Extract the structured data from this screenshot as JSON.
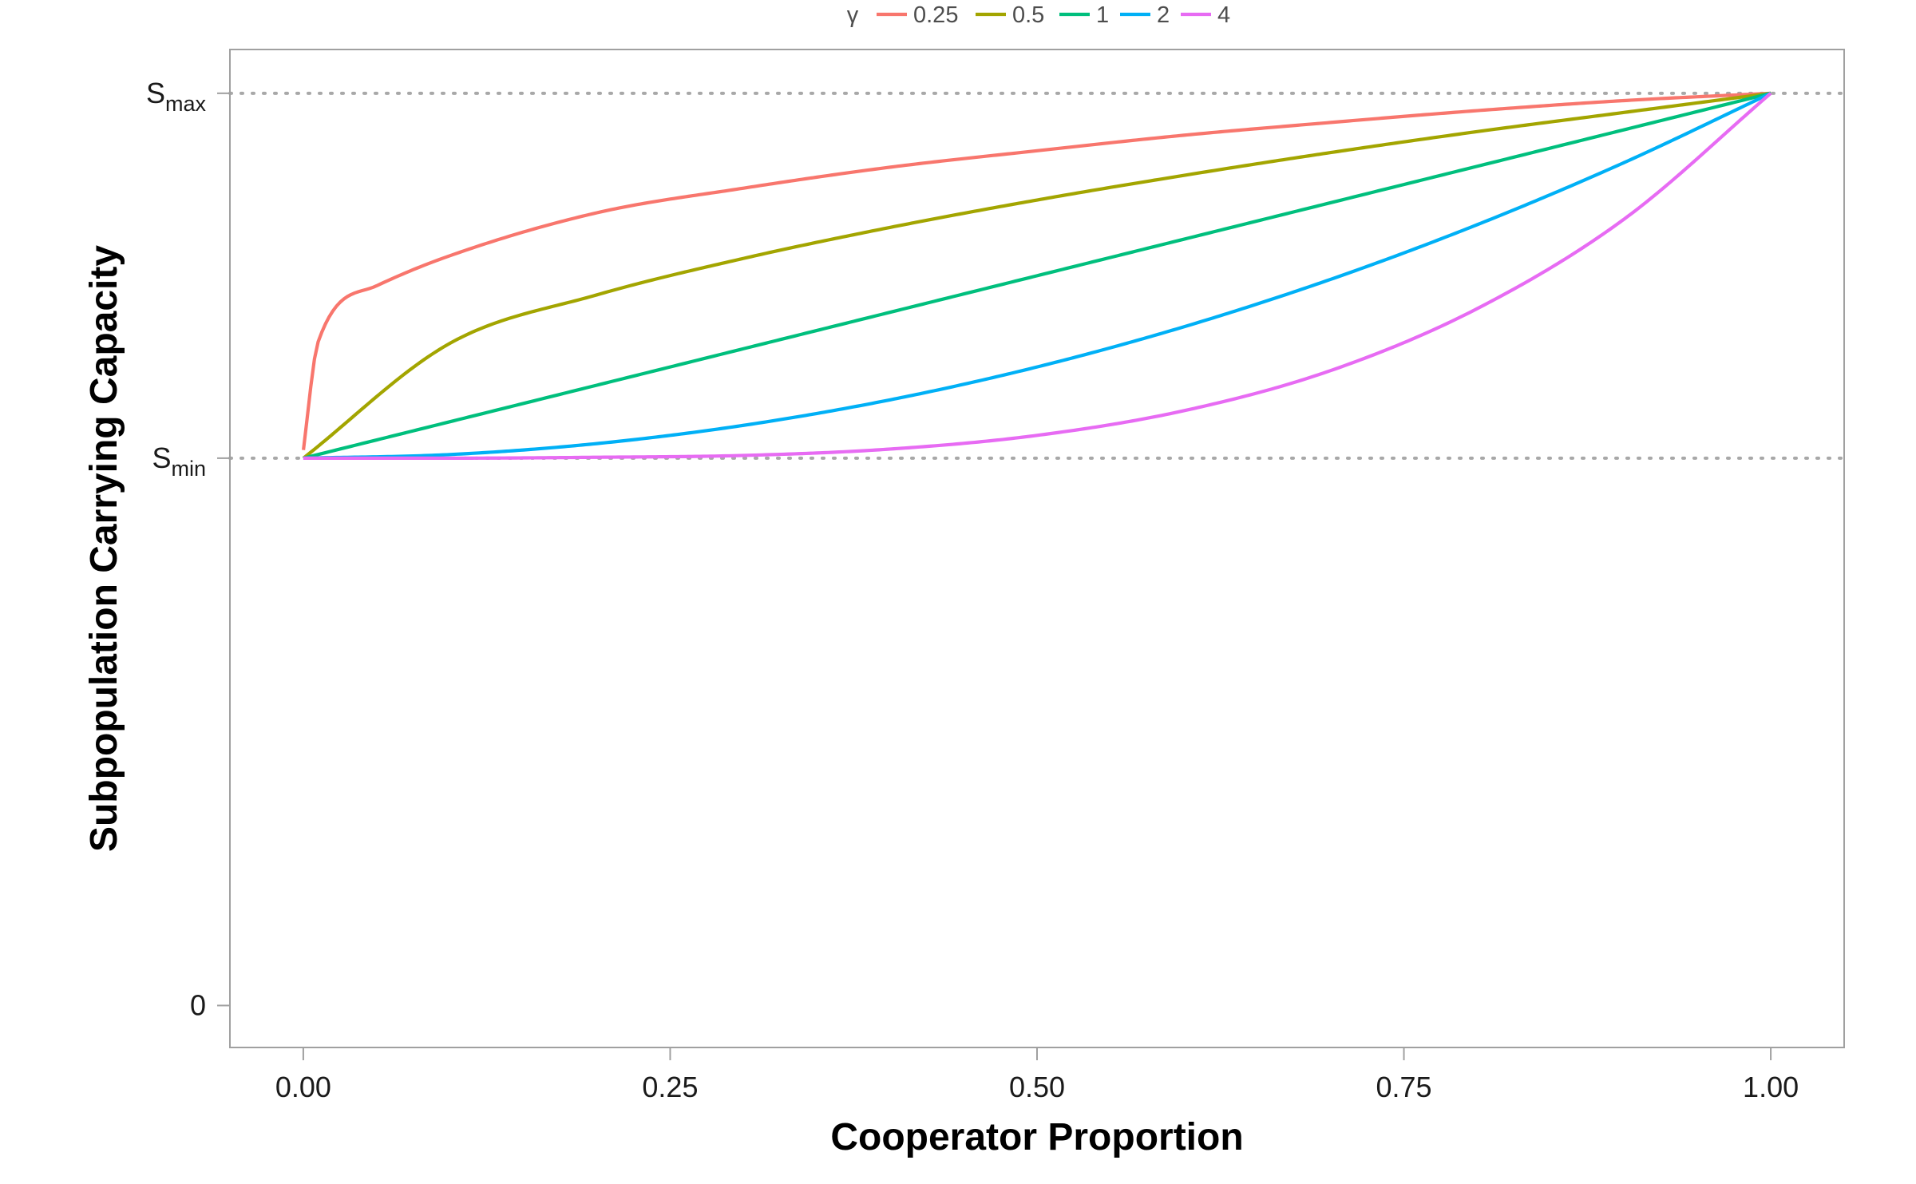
{
  "chart_data": {
    "type": "line",
    "xlabel": "Cooperator Proportion",
    "ylabel": "Subpopulation Carrying Capacity",
    "xlim": [
      -0.05,
      1.05
    ],
    "x_ticks": [
      {
        "value": 0.0,
        "label": "0.00"
      },
      {
        "value": 0.25,
        "label": "0.25"
      },
      {
        "value": 0.5,
        "label": "0.50"
      },
      {
        "value": 0.75,
        "label": "0.75"
      },
      {
        "value": 1.0,
        "label": "1.00"
      }
    ],
    "y_ticks": [
      {
        "value": 0,
        "base": "0",
        "sub": ""
      },
      {
        "value": 0.6,
        "base": "S",
        "sub": "min"
      },
      {
        "value": 1.0,
        "base": "S",
        "sub": "max"
      }
    ],
    "ylim": [
      -0.046,
      1.048
    ],
    "reference_lines": [
      {
        "y": 0.6,
        "style": "dotted",
        "color": "#a8a8a8"
      },
      {
        "y": 1.0,
        "style": "dotted",
        "color": "#a8a8a8"
      }
    ],
    "legend": {
      "title": "γ",
      "position": "top"
    },
    "grid": false,
    "series": [
      {
        "name": "0.25",
        "color": "#F8766D",
        "x_min": 0.0001,
        "x": [
          0,
          0.01,
          0.05,
          0.1,
          0.2,
          0.3,
          0.4,
          0.5,
          0.6,
          0.7,
          0.8,
          0.9,
          1.0
        ],
        "y": [
          0.609,
          0.727,
          0.789,
          0.822,
          0.869,
          0.896,
          0.919,
          0.937,
          0.954,
          0.968,
          0.981,
          0.992,
          1.0
        ]
      },
      {
        "name": "0.5",
        "color": "#A3A500",
        "x_min": 0.0001,
        "x": [
          0,
          0.1,
          0.2,
          0.3,
          0.4,
          0.5,
          0.6,
          0.7,
          0.8,
          0.9,
          1.0
        ],
        "y": [
          0.6,
          0.726,
          0.779,
          0.819,
          0.853,
          0.883,
          0.91,
          0.935,
          0.958,
          0.979,
          1.0
        ]
      },
      {
        "name": "1",
        "color": "#00BF7D",
        "x": [
          0,
          0.25,
          0.5,
          0.75,
          1.0
        ],
        "y": [
          0.6,
          0.7,
          0.8,
          0.9,
          1.0
        ]
      },
      {
        "name": "2",
        "color": "#00B0F6",
        "x": [
          0,
          0.1,
          0.2,
          0.3,
          0.4,
          0.5,
          0.6,
          0.7,
          0.8,
          0.9,
          1.0
        ],
        "y": [
          0.6,
          0.604,
          0.616,
          0.636,
          0.664,
          0.7,
          0.744,
          0.796,
          0.856,
          0.924,
          1.0
        ]
      },
      {
        "name": "4",
        "color": "#E76BF3",
        "x": [
          0,
          0.1,
          0.2,
          0.3,
          0.4,
          0.5,
          0.6,
          0.7,
          0.8,
          0.9,
          1.0
        ],
        "y": [
          0.6,
          0.6,
          0.601,
          0.603,
          0.61,
          0.625,
          0.652,
          0.696,
          0.764,
          0.862,
          1.0
        ]
      }
    ]
  }
}
